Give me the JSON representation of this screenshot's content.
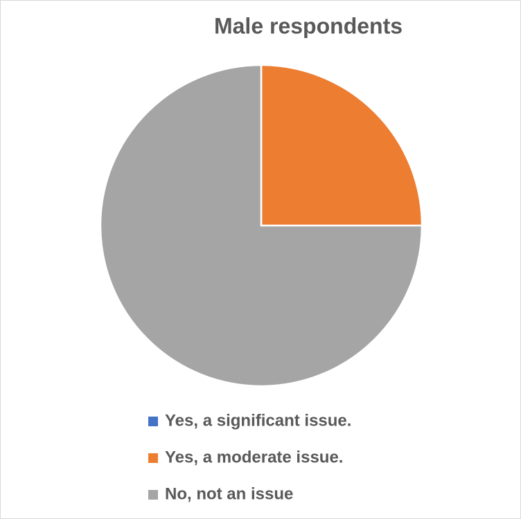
{
  "chart_data": {
    "type": "pie",
    "title": "Male respondents",
    "categories": [
      "Yes, a significant issue.",
      "Yes, a moderate issue.",
      "No, not an issue"
    ],
    "values": [
      0,
      25,
      75
    ],
    "colors": [
      "#4472c4",
      "#ed7d31",
      "#a5a5a5"
    ],
    "legend": "bottom"
  }
}
